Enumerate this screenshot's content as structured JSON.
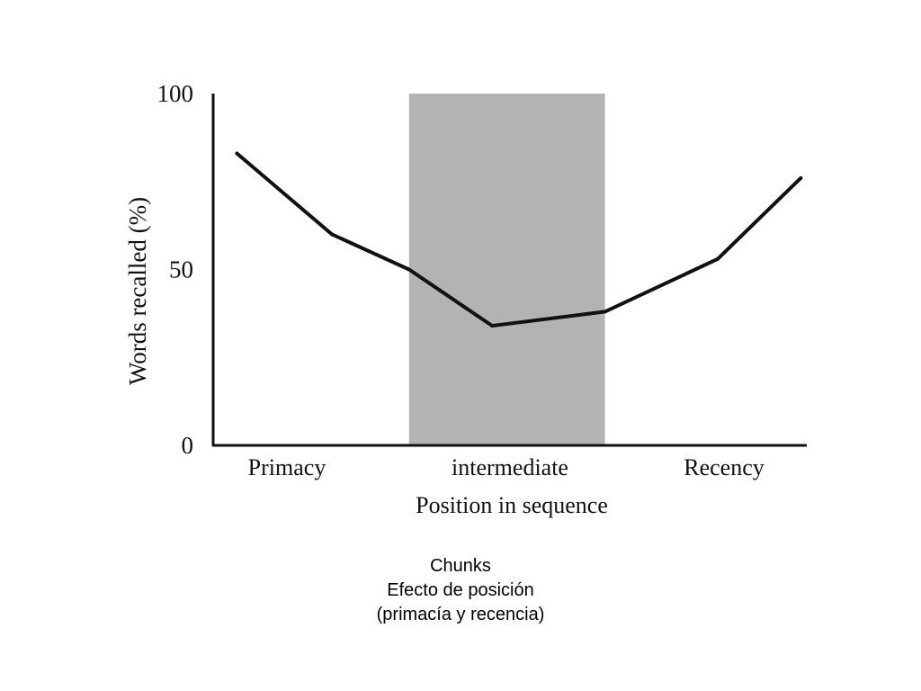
{
  "chart_data": {
    "type": "line",
    "title": "",
    "xlabel": "Position in sequence",
    "ylabel": "Words recalled (%)",
    "ylim": [
      0,
      100
    ],
    "y_ticks": [
      "0",
      "50",
      "100"
    ],
    "y_tick_values": [
      0,
      50,
      100
    ],
    "categories": [
      "Primacy",
      "intermediate",
      "Recency"
    ],
    "xlim": [
      0,
      10
    ],
    "x": [
      0.4,
      2.0,
      3.3,
      4.7,
      6.6,
      8.5,
      9.9
    ],
    "series": [
      {
        "name": "",
        "values": [
          83,
          60,
          50,
          34,
          38,
          53,
          76
        ]
      }
    ],
    "highlight_region": {
      "label": "intermediate",
      "x_start": 3.3,
      "x_end": 6.6
    },
    "grid": false,
    "legend": "none",
    "colors": {
      "line": "#111111",
      "axis": "#111111",
      "highlight": "#b3b3b3"
    }
  },
  "caption": {
    "line1": "Chunks",
    "line2": "Efecto de posición",
    "line3": "(primacía y recencia)"
  }
}
